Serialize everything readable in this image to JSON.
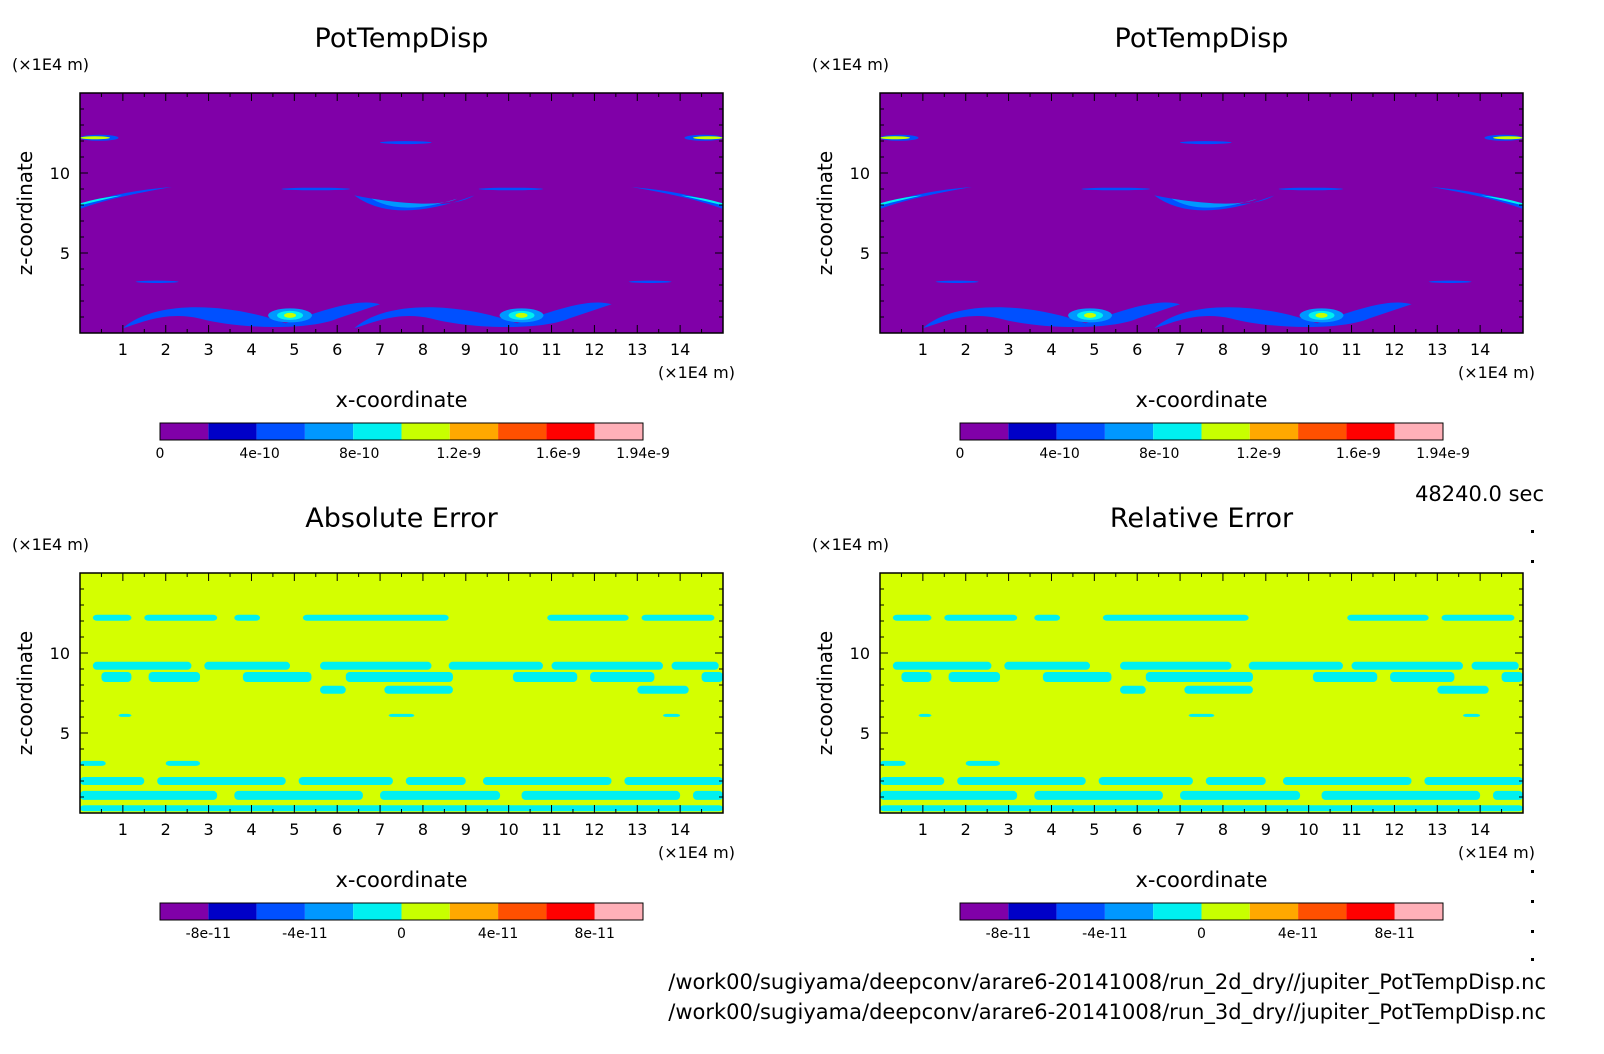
{
  "time_label": "48240.0 sec",
  "footer": {
    "line1": "/work00/sugiyama/deepconv/arare6-20141008/run_2d_dry//jupiter_PotTempDisp.nc",
    "line2": "/work00/sugiyama/deepconv/arare6-20141008/run_3d_dry//jupiter_PotTempDisp.nc"
  },
  "colors": {
    "background": "#7f00a8",
    "error_fill": "#d4ff00",
    "error_cyan": "#00f0f0"
  },
  "palette": [
    "#8000a8",
    "#0000c8",
    "#0050ff",
    "#0098ff",
    "#00f0f0",
    "#c8ff00",
    "#ffa800",
    "#ff5000",
    "#ff0000",
    "#ffb0b8"
  ],
  "chart_data": [
    {
      "type": "heatmap",
      "title": "PotTempDisp",
      "xlabel": "x-coordinate",
      "ylabel": "z-coordinate",
      "x_unit": "(×1E4 m)",
      "y_unit": "(×1E4 m)",
      "xlim": [
        0,
        15
      ],
      "ylim": [
        0,
        15
      ],
      "xticks": [
        "1",
        "2",
        "3",
        "4",
        "5",
        "6",
        "7",
        "8",
        "9",
        "10",
        "11",
        "12",
        "13",
        "14"
      ],
      "yticks": [
        "5",
        "10"
      ],
      "colorbar_labels": [
        "0",
        "4e-10",
        "8e-10",
        "1.2e-9",
        "1.6e-9",
        "1.94e-9"
      ],
      "range": [
        0,
        1.94e-09
      ],
      "kind": "field"
    },
    {
      "type": "heatmap",
      "title": "PotTempDisp",
      "xlabel": "x-coordinate",
      "ylabel": "z-coordinate",
      "x_unit": "(×1E4 m)",
      "y_unit": "(×1E4 m)",
      "xlim": [
        0,
        15
      ],
      "ylim": [
        0,
        15
      ],
      "xticks": [
        "1",
        "2",
        "3",
        "4",
        "5",
        "6",
        "7",
        "8",
        "9",
        "10",
        "11",
        "12",
        "13",
        "14"
      ],
      "yticks": [
        "5",
        "10"
      ],
      "colorbar_labels": [
        "0",
        "4e-10",
        "8e-10",
        "1.2e-9",
        "1.6e-9",
        "1.94e-9"
      ],
      "range": [
        0,
        1.94e-09
      ],
      "kind": "field"
    },
    {
      "type": "heatmap",
      "title": "Absolute Error",
      "xlabel": "x-coordinate",
      "ylabel": "z-coordinate",
      "x_unit": "(×1E4 m)",
      "y_unit": "(×1E4 m)",
      "xlim": [
        0,
        15
      ],
      "ylim": [
        0,
        15
      ],
      "xticks": [
        "1",
        "2",
        "3",
        "4",
        "5",
        "6",
        "7",
        "8",
        "9",
        "10",
        "11",
        "12",
        "13",
        "14"
      ],
      "yticks": [
        "5",
        "10"
      ],
      "colorbar_labels": [
        "-8e-11",
        "-4e-11",
        "0",
        "4e-11",
        "8e-11"
      ],
      "range": [
        -1e-10,
        1e-10
      ],
      "kind": "error"
    },
    {
      "type": "heatmap",
      "title": "Relative Error",
      "xlabel": "x-coordinate",
      "ylabel": "z-coordinate",
      "x_unit": "(×1E4 m)",
      "y_unit": "(×1E4 m)",
      "xlim": [
        0,
        15
      ],
      "ylim": [
        0,
        15
      ],
      "xticks": [
        "1",
        "2",
        "3",
        "4",
        "5",
        "6",
        "7",
        "8",
        "9",
        "10",
        "11",
        "12",
        "13",
        "14"
      ],
      "yticks": [
        "5",
        "10"
      ],
      "colorbar_labels": [
        "-8e-11",
        "-4e-11",
        "0",
        "4e-11",
        "8e-11"
      ],
      "range": [
        -1e-10,
        1e-10
      ],
      "kind": "error"
    }
  ]
}
